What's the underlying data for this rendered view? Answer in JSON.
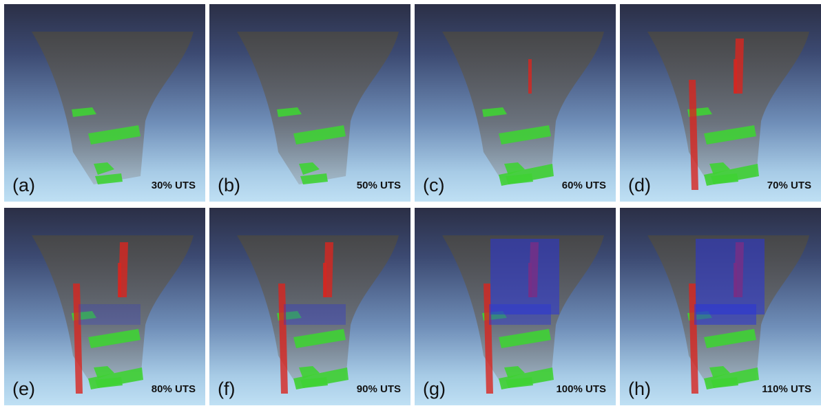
{
  "panels": [
    {
      "letter": "(a)",
      "label": "30% UTS"
    },
    {
      "letter": "(b)",
      "label": "50% UTS"
    },
    {
      "letter": "(c)",
      "label": "60% UTS"
    },
    {
      "letter": "(d)",
      "label": "70% UTS"
    },
    {
      "letter": "(e)",
      "label": "80% UTS"
    },
    {
      "letter": "(f)",
      "label": "90% UTS"
    },
    {
      "letter": "(g)",
      "label": "100% UTS"
    },
    {
      "letter": "(h)",
      "label": "110% UTS"
    }
  ],
  "colors": {
    "volume": "#5a5a5a",
    "green": "#3fd234",
    "red": "#d8261f",
    "blue": "#2a35d8",
    "bg_top": "#2b2f46",
    "bg_bottom": "#bfe0f4"
  }
}
